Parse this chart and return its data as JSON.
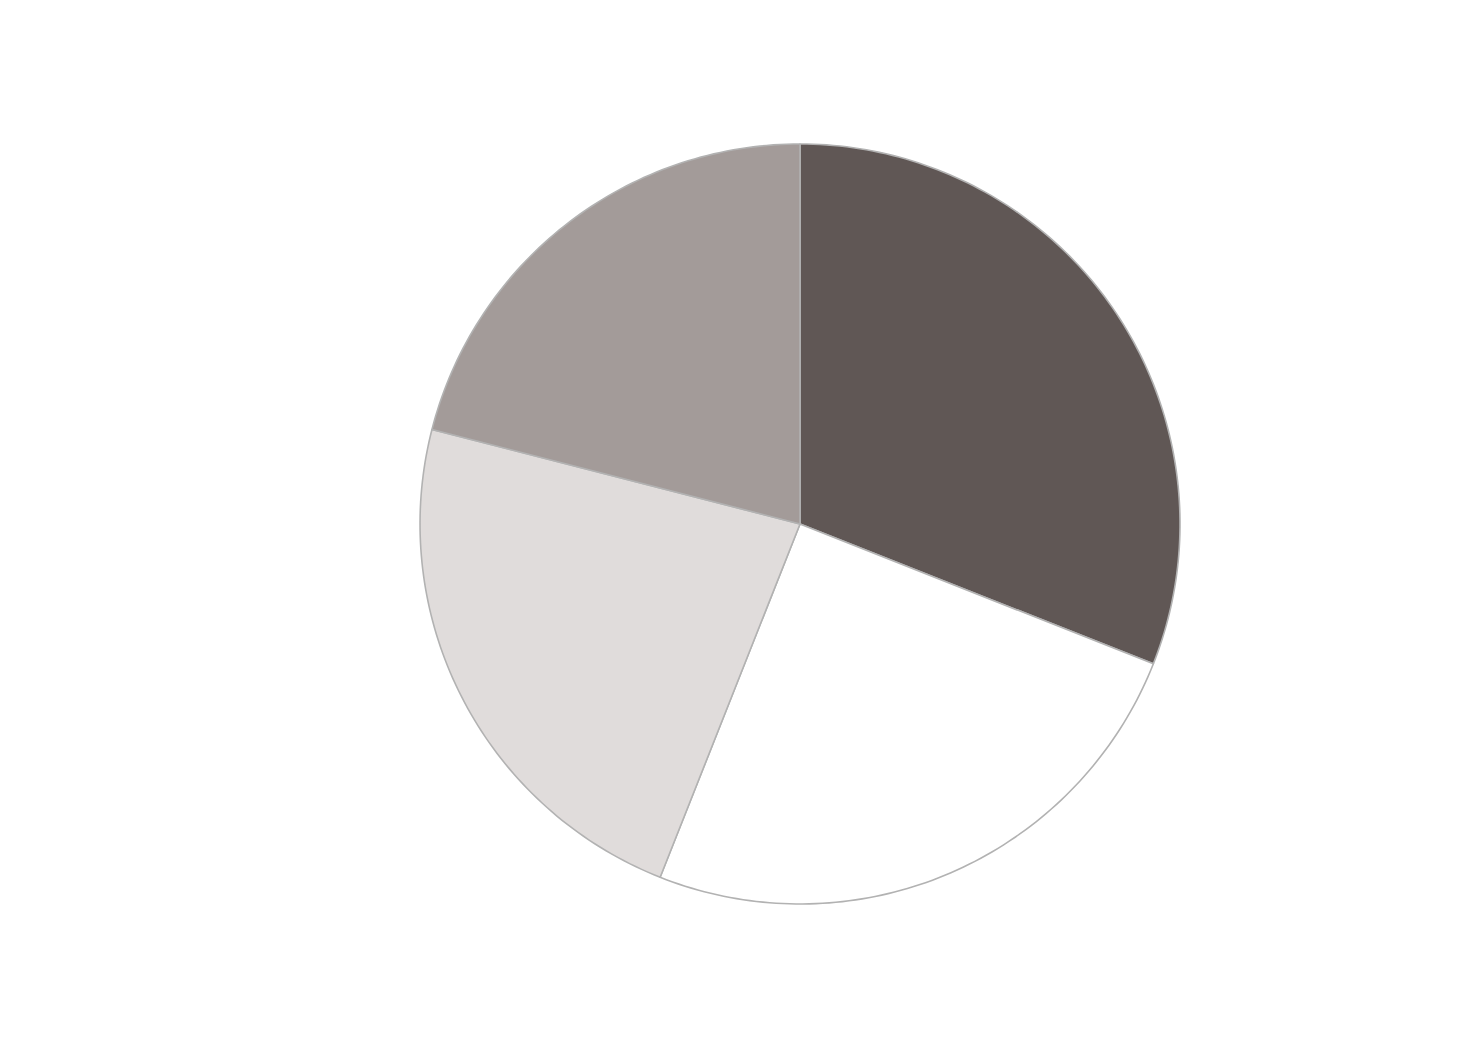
{
  "chart_data": {
    "type": "pie",
    "categories": [
      null,
      null,
      null,
      null
    ],
    "values": [
      31,
      25,
      23,
      21
    ],
    "colors": [
      "#605755",
      "#ffffff",
      "#e0dcdb",
      "#a39b99"
    ]
  }
}
